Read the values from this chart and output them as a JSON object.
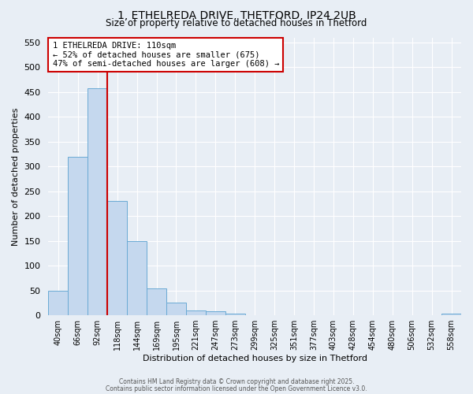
{
  "title_line1": "1, ETHELREDA DRIVE, THETFORD, IP24 2UB",
  "title_line2": "Size of property relative to detached houses in Thetford",
  "xlabel": "Distribution of detached houses by size in Thetford",
  "ylabel": "Number of detached properties",
  "bar_values": [
    50,
    320,
    457,
    230,
    150,
    55,
    25,
    10,
    8,
    3,
    0,
    0,
    0,
    0,
    0,
    0,
    0,
    0,
    0,
    0,
    3
  ],
  "categories": [
    "40sqm",
    "66sqm",
    "92sqm",
    "118sqm",
    "144sqm",
    "169sqm",
    "195sqm",
    "221sqm",
    "247sqm",
    "273sqm",
    "299sqm",
    "325sqm",
    "351sqm",
    "377sqm",
    "403sqm",
    "428sqm",
    "454sqm",
    "480sqm",
    "506sqm",
    "532sqm",
    "558sqm"
  ],
  "bar_color": "#c5d8ee",
  "bar_edge_color": "#6aaad4",
  "background_color": "#e8eef5",
  "grid_color": "#ffffff",
  "vline_x": 2.5,
  "vline_color": "#cc0000",
  "annotation_text": "1 ETHELREDA DRIVE: 110sqm\n← 52% of detached houses are smaller (675)\n47% of semi-detached houses are larger (608) →",
  "annotation_box_color": "#cc0000",
  "ylim": [
    0,
    560
  ],
  "yticks": [
    0,
    50,
    100,
    150,
    200,
    250,
    300,
    350,
    400,
    450,
    500,
    550
  ],
  "footer_line1": "Contains HM Land Registry data © Crown copyright and database right 2025.",
  "footer_line2": "Contains public sector information licensed under the Open Government Licence v3.0."
}
